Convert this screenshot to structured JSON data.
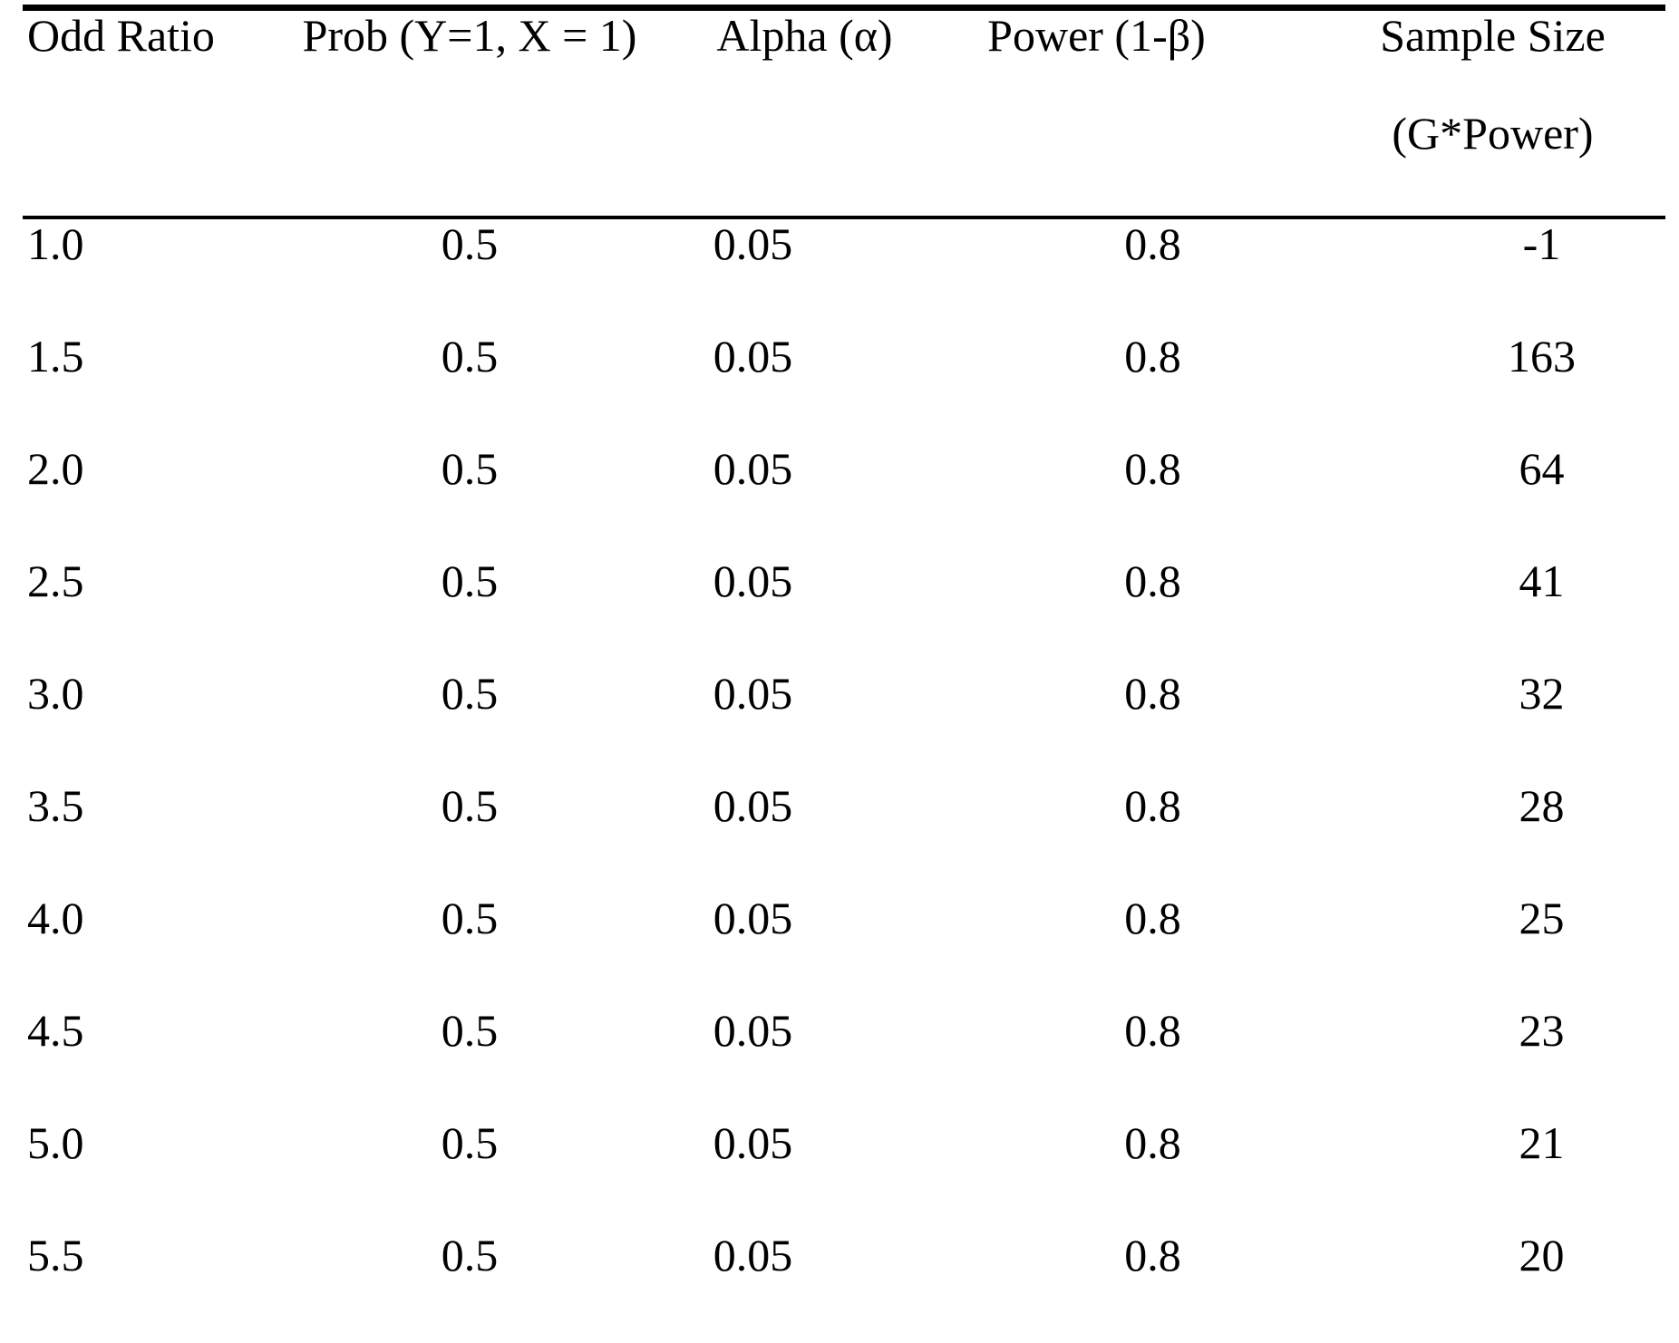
{
  "page": {
    "background": "#ffffff",
    "text_color": "#000000"
  },
  "table": {
    "headers": [
      {
        "label": "Odd Ratio",
        "line2": ""
      },
      {
        "label": "Prob (Y=1, X = 1)",
        "line2": ""
      },
      {
        "label": "Alpha (α)",
        "line2": ""
      },
      {
        "label": "Power (1-β)",
        "line2": ""
      },
      {
        "label": "Sample Size",
        "line2": "(G*Power)"
      }
    ],
    "rows": [
      [
        "1.0",
        "0.5",
        "0.05",
        "0.8",
        "-1"
      ],
      [
        "1.5",
        "0.5",
        "0.05",
        "0.8",
        "163"
      ],
      [
        "2.0",
        "0.5",
        "0.05",
        "0.8",
        "64"
      ],
      [
        "2.5",
        "0.5",
        "0.05",
        "0.8",
        "41"
      ],
      [
        "3.0",
        "0.5",
        "0.05",
        "0.8",
        "32"
      ],
      [
        "3.5",
        "0.5",
        "0.05",
        "0.8",
        "28"
      ],
      [
        "4.0",
        "0.5",
        "0.05",
        "0.8",
        "25"
      ],
      [
        "4.5",
        "0.5",
        "0.05",
        "0.8",
        "23"
      ],
      [
        "5.0",
        "0.5",
        "0.05",
        "0.8",
        "21"
      ],
      [
        "5.5",
        "0.5",
        "0.05",
        "0.8",
        "20"
      ]
    ]
  }
}
